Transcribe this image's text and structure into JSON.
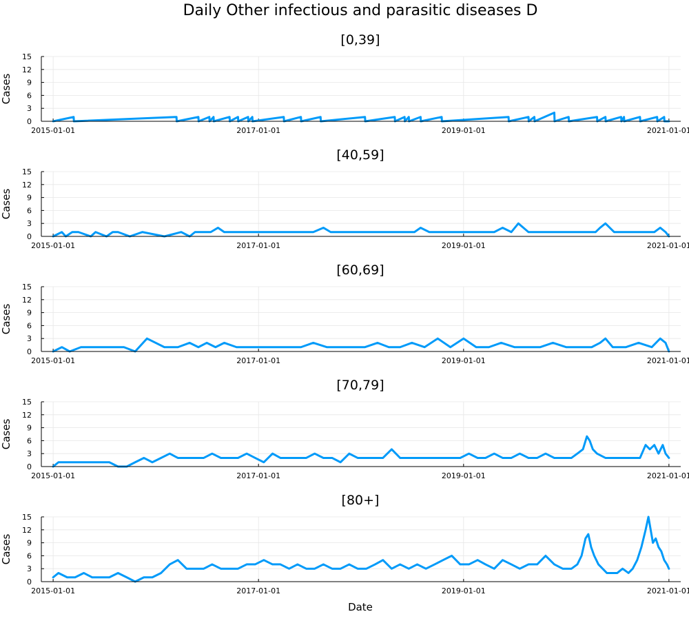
{
  "chart_data": {
    "type": "line",
    "title": "Daily Other infectious and parasitic diseases D",
    "xlabel": "Date",
    "ylabel": "Cases",
    "x_range": [
      "2015-01-01",
      "2021-01-01"
    ],
    "x_ticks": [
      "2015-01-01",
      "2017-01-01",
      "2019-01-01",
      "2021-01-01"
    ],
    "ylim": [
      0,
      15
    ],
    "y_ticks": [
      0,
      3,
      6,
      9,
      12,
      15
    ],
    "grid": true,
    "line_color": "#009af9",
    "panels": [
      {
        "title": "[0,39]",
        "series": [
          {
            "x": [
              "2015-01-01",
              "2015-03-15",
              "2015-03-16",
              "2016-03-15",
              "2016-03-16",
              "2016-06-01",
              "2016-06-02",
              "2016-07-10",
              "2016-07-11",
              "2016-07-25",
              "2016-07-26",
              "2016-09-20",
              "2016-09-21",
              "2016-10-20",
              "2016-10-21",
              "2016-11-25",
              "2016-11-26",
              "2016-12-10",
              "2016-12-11",
              "2017-04-01",
              "2017-04-02",
              "2017-06-01",
              "2017-06-02",
              "2017-08-10",
              "2017-08-11",
              "2018-01-15",
              "2018-01-16",
              "2018-05-01",
              "2018-05-02",
              "2018-06-05",
              "2018-06-06",
              "2018-06-20",
              "2018-06-21",
              "2018-08-01",
              "2018-08-02",
              "2018-10-15",
              "2018-10-16",
              "2019-06-10",
              "2019-06-11",
              "2019-08-20",
              "2019-08-21",
              "2019-09-10",
              "2019-09-11",
              "2019-11-20",
              "2019-11-21",
              "2020-01-10",
              "2020-01-11",
              "2020-04-20",
              "2020-04-21",
              "2020-05-20",
              "2020-05-21",
              "2020-07-15",
              "2020-07-16",
              "2020-07-25",
              "2020-07-26",
              "2020-09-20",
              "2020-09-21",
              "2020-11-20",
              "2020-11-21",
              "2020-12-15",
              "2020-12-16",
              "2021-01-01"
            ],
            "y": [
              0,
              1,
              0,
              1,
              0,
              1,
              0,
              1,
              0,
              1,
              0,
              1,
              0,
              1,
              0,
              1,
              0,
              1,
              0,
              1,
              0,
              1,
              0,
              1,
              0,
              1,
              0,
              1,
              0,
              1,
              0,
              1,
              0,
              1,
              0,
              1,
              0,
              1,
              0,
              1,
              0,
              1,
              0,
              2,
              0,
              1,
              0,
              1,
              0,
              1,
              0,
              1,
              0,
              1,
              0,
              1,
              0,
              1,
              0,
              1,
              0,
              0
            ]
          }
        ]
      },
      {
        "title": "[40,59]",
        "series": [
          {
            "x": [
              "2015-01-01",
              "2015-02-01",
              "2015-02-15",
              "2015-03-10",
              "2015-04-01",
              "2015-05-15",
              "2015-06-01",
              "2015-07-10",
              "2015-08-01",
              "2015-08-20",
              "2015-10-01",
              "2015-11-15",
              "2016-02-01",
              "2016-04-01",
              "2016-05-01",
              "2016-05-20",
              "2016-06-15",
              "2016-07-15",
              "2016-08-10",
              "2016-09-01",
              "2016-09-20",
              "2016-10-15",
              "2016-11-20",
              "2016-12-20",
              "2017-02-01",
              "2017-03-15",
              "2017-04-20",
              "2017-06-01",
              "2017-07-15",
              "2017-08-20",
              "2017-09-15",
              "2017-10-20",
              "2017-12-01",
              "2018-01-10",
              "2018-02-20",
              "2018-04-01",
              "2018-05-01",
              "2018-06-01",
              "2018-07-10",
              "2018-08-01",
              "2018-09-01",
              "2018-10-15",
              "2018-12-01",
              "2019-01-20",
              "2019-03-01",
              "2019-04-20",
              "2019-05-20",
              "2019-06-20",
              "2019-07-15",
              "2019-08-20",
              "2019-09-10",
              "2019-10-20",
              "2019-11-20",
              "2019-12-20",
              "2020-02-01",
              "2020-03-10",
              "2020-04-15",
              "2020-05-01",
              "2020-05-20",
              "2020-06-20",
              "2020-07-20",
              "2020-08-15",
              "2020-09-20",
              "2020-10-15",
              "2020-11-10",
              "2020-12-01",
              "2020-12-20",
              "2021-01-01"
            ],
            "y": [
              0,
              1,
              0,
              1,
              1,
              0,
              1,
              0,
              1,
              1,
              0,
              1,
              0,
              1,
              0,
              1,
              1,
              1,
              2,
              1,
              1,
              1,
              1,
              1,
              1,
              1,
              1,
              1,
              1,
              2,
              1,
              1,
              1,
              1,
              1,
              1,
              1,
              1,
              1,
              2,
              1,
              1,
              1,
              1,
              1,
              1,
              2,
              1,
              3,
              1,
              1,
              1,
              1,
              1,
              1,
              1,
              1,
              2,
              3,
              1,
              1,
              1,
              1,
              1,
              1,
              2,
              1,
              0
            ]
          }
        ]
      },
      {
        "title": "[60,69]",
        "series": [
          {
            "x": [
              "2015-01-01",
              "2015-02-01",
              "2015-03-01",
              "2015-04-10",
              "2015-05-15",
              "2015-06-20",
              "2015-08-01",
              "2015-09-10",
              "2015-10-20",
              "2015-12-01",
              "2016-02-01",
              "2016-03-20",
              "2016-05-01",
              "2016-06-01",
              "2016-07-01",
              "2016-08-01",
              "2016-09-01",
              "2016-10-15",
              "2016-12-01",
              "2017-01-15",
              "2017-03-01",
              "2017-04-15",
              "2017-06-01",
              "2017-07-15",
              "2017-09-01",
              "2017-10-15",
              "2017-12-01",
              "2018-01-15",
              "2018-03-01",
              "2018-04-10",
              "2018-05-20",
              "2018-07-01",
              "2018-08-15",
              "2018-10-01",
              "2018-11-15",
              "2019-01-01",
              "2019-02-15",
              "2019-04-01",
              "2019-05-15",
              "2019-07-01",
              "2019-08-15",
              "2019-10-01",
              "2019-11-15",
              "2020-01-01",
              "2020-02-15",
              "2020-04-01",
              "2020-05-01",
              "2020-05-20",
              "2020-06-15",
              "2020-08-01",
              "2020-09-15",
              "2020-11-01",
              "2020-12-01",
              "2020-12-20",
              "2021-01-01"
            ],
            "y": [
              0,
              1,
              0,
              1,
              1,
              1,
              1,
              1,
              0,
              3,
              1,
              1,
              2,
              1,
              2,
              1,
              2,
              1,
              1,
              1,
              1,
              1,
              1,
              2,
              1,
              1,
              1,
              1,
              2,
              1,
              1,
              2,
              1,
              3,
              1,
              3,
              1,
              1,
              2,
              1,
              1,
              1,
              2,
              1,
              1,
              1,
              2,
              3,
              1,
              1,
              2,
              1,
              3,
              2,
              0
            ]
          }
        ]
      },
      {
        "title": "[70,79]",
        "series": [
          {
            "x": [
              "2015-01-01",
              "2015-01-20",
              "2015-02-20",
              "2015-03-20",
              "2015-04-20",
              "2015-05-20",
              "2015-06-20",
              "2015-07-20",
              "2015-08-20",
              "2015-09-20",
              "2015-10-20",
              "2015-11-20",
              "2015-12-20",
              "2016-01-20",
              "2016-02-20",
              "2016-03-20",
              "2016-04-20",
              "2016-05-20",
              "2016-06-20",
              "2016-07-20",
              "2016-08-20",
              "2016-09-20",
              "2016-10-20",
              "2016-11-20",
              "2016-12-20",
              "2017-01-20",
              "2017-02-20",
              "2017-03-20",
              "2017-04-20",
              "2017-05-20",
              "2017-06-20",
              "2017-07-20",
              "2017-08-20",
              "2017-09-20",
              "2017-10-20",
              "2017-11-20",
              "2017-12-20",
              "2018-01-20",
              "2018-02-20",
              "2018-03-20",
              "2018-04-20",
              "2018-05-20",
              "2018-06-20",
              "2018-07-20",
              "2018-08-20",
              "2018-09-20",
              "2018-10-20",
              "2018-11-20",
              "2018-12-20",
              "2019-01-20",
              "2019-02-20",
              "2019-03-20",
              "2019-04-20",
              "2019-05-20",
              "2019-06-20",
              "2019-07-20",
              "2019-08-20",
              "2019-09-20",
              "2019-10-20",
              "2019-11-20",
              "2019-12-20",
              "2020-01-20",
              "2020-02-10",
              "2020-03-01",
              "2020-03-15",
              "2020-03-25",
              "2020-04-05",
              "2020-04-20",
              "2020-05-20",
              "2020-06-20",
              "2020-07-20",
              "2020-08-20",
              "2020-09-20",
              "2020-10-10",
              "2020-10-25",
              "2020-11-10",
              "2020-11-25",
              "2020-12-10",
              "2020-12-20",
              "2021-01-01"
            ],
            "y": [
              0,
              1,
              1,
              1,
              1,
              1,
              1,
              1,
              0,
              0,
              1,
              2,
              1,
              2,
              3,
              2,
              2,
              2,
              2,
              3,
              2,
              2,
              2,
              3,
              2,
              1,
              3,
              2,
              2,
              2,
              2,
              3,
              2,
              2,
              1,
              3,
              2,
              2,
              2,
              2,
              4,
              2,
              2,
              2,
              2,
              2,
              2,
              2,
              2,
              3,
              2,
              2,
              3,
              2,
              2,
              3,
              2,
              2,
              3,
              2,
              2,
              2,
              3,
              4,
              7,
              6,
              4,
              3,
              2,
              2,
              2,
              2,
              2,
              5,
              4,
              5,
              3,
              5,
              3,
              2
            ]
          }
        ]
      },
      {
        "title": "[80+]",
        "series": [
          {
            "x": [
              "2015-01-01",
              "2015-01-20",
              "2015-02-20",
              "2015-03-20",
              "2015-04-20",
              "2015-05-20",
              "2015-06-20",
              "2015-07-20",
              "2015-08-20",
              "2015-09-20",
              "2015-10-20",
              "2015-11-20",
              "2015-12-20",
              "2016-01-20",
              "2016-02-20",
              "2016-03-20",
              "2016-04-20",
              "2016-05-20",
              "2016-06-20",
              "2016-07-20",
              "2016-08-20",
              "2016-09-20",
              "2016-10-20",
              "2016-11-20",
              "2016-12-20",
              "2017-01-20",
              "2017-02-20",
              "2017-03-20",
              "2017-04-20",
              "2017-05-20",
              "2017-06-20",
              "2017-07-20",
              "2017-08-20",
              "2017-09-20",
              "2017-10-20",
              "2017-11-20",
              "2017-12-20",
              "2018-01-20",
              "2018-02-20",
              "2018-03-20",
              "2018-04-20",
              "2018-05-20",
              "2018-06-20",
              "2018-07-20",
              "2018-08-20",
              "2018-09-20",
              "2018-10-20",
              "2018-11-20",
              "2018-12-20",
              "2019-01-20",
              "2019-02-20",
              "2019-03-20",
              "2019-04-20",
              "2019-05-20",
              "2019-06-20",
              "2019-07-20",
              "2019-08-20",
              "2019-09-20",
              "2019-10-20",
              "2019-11-20",
              "2019-12-20",
              "2020-01-20",
              "2020-02-10",
              "2020-02-25",
              "2020-03-10",
              "2020-03-20",
              "2020-03-30",
              "2020-04-10",
              "2020-04-25",
              "2020-05-10",
              "2020-05-25",
              "2020-06-10",
              "2020-07-01",
              "2020-07-20",
              "2020-08-10",
              "2020-08-25",
              "2020-09-10",
              "2020-09-25",
              "2020-10-10",
              "2020-10-20",
              "2020-10-28",
              "2020-11-05",
              "2020-11-15",
              "2020-11-25",
              "2020-12-05",
              "2020-12-15",
              "2020-12-25",
              "2021-01-01"
            ],
            "y": [
              1,
              2,
              1,
              1,
              2,
              1,
              1,
              1,
              2,
              1,
              0,
              1,
              1,
              2,
              4,
              5,
              3,
              3,
              3,
              4,
              3,
              3,
              3,
              4,
              4,
              5,
              4,
              4,
              3,
              4,
              3,
              3,
              4,
              3,
              3,
              4,
              3,
              3,
              4,
              5,
              3,
              4,
              3,
              4,
              3,
              4,
              5,
              6,
              4,
              4,
              5,
              4,
              3,
              5,
              4,
              3,
              4,
              4,
              6,
              4,
              3,
              3,
              4,
              6,
              10,
              11,
              8,
              6,
              4,
              3,
              2,
              2,
              2,
              3,
              2,
              3,
              5,
              8,
              12,
              15,
              12,
              9,
              10,
              8,
              7,
              5,
              4,
              3
            ]
          }
        ]
      }
    ]
  }
}
